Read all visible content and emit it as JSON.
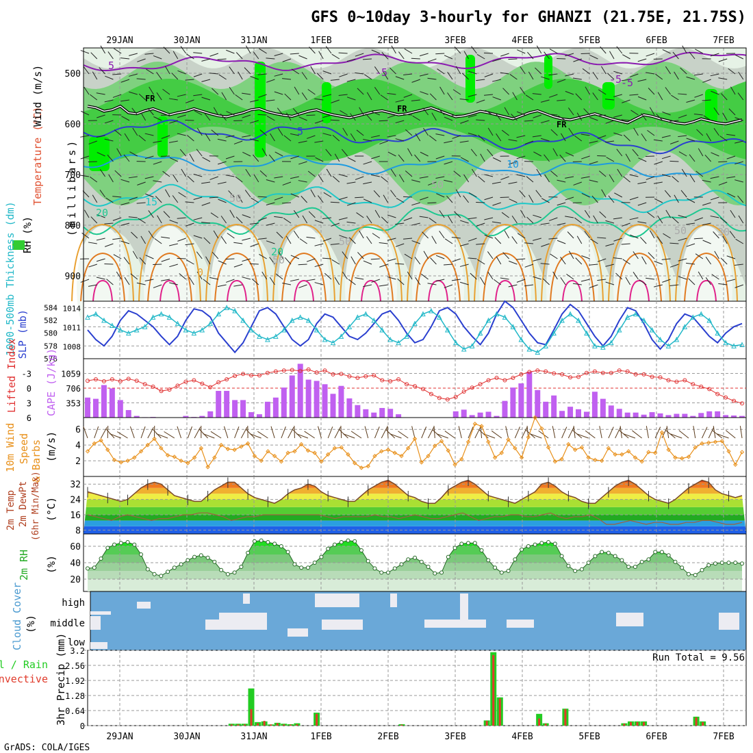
{
  "title": "GFS 0~10day 3-hourly for GHANZI (21.75E, 21.75S)",
  "footer": "GrADS: COLA/IGES",
  "dates": [
    "29JAN",
    "30JAN",
    "31JAN",
    "1FEB",
    "2FEB",
    "3FEB",
    "4FEB",
    "5FEB",
    "6FEB",
    "7FEB"
  ],
  "colors": {
    "rh_green": "#33cc33",
    "rh_bright": "#00ee00",
    "rh_grey": "#c8d2c8",
    "rh_light": "#e6f2e6",
    "slp": "#2a3fcf",
    "thickness": "#22b8c8",
    "lifted": "#e03030",
    "cape": "#c060f0",
    "wind_speed": "#e8901a",
    "barb": "#5a3a1a",
    "rh2m": "#33cc33",
    "cloud_blue": "#6aa8d8",
    "precip_total": "#22cc22",
    "precip_conv": "#e03a2a"
  },
  "chart_data": [
    {
      "type": "heatmap",
      "name": "RH / Temperature / Wind cross-section",
      "ylabel_parts": [
        "RH (%)",
        "Temperature (°C)",
        "Wind (m/s)"
      ],
      "ylabel_units": "(millibars)",
      "yticks": [
        500,
        600,
        700,
        800,
        900
      ],
      "ylim": [
        950,
        450
      ],
      "contour_labels": [
        "5",
        "-5",
        "FR",
        "FR",
        "FR",
        "-5",
        "-5",
        "5",
        "10",
        "15",
        "20",
        "20",
        "0",
        "50",
        "50",
        "50",
        "50",
        "50",
        "30"
      ],
      "freezing_level_mb": [
        565,
        568,
        575,
        572,
        565,
        578,
        580,
        574,
        570,
        576,
        582,
        578,
        575,
        570,
        575,
        580,
        584,
        586,
        582,
        578,
        572,
        570,
        576,
        580,
        583,
        585,
        580,
        575,
        572,
        578,
        582,
        585,
        588,
        584,
        580,
        576,
        574,
        578,
        582,
        580,
        576,
        572,
        568,
        574,
        580,
        586,
        584,
        580,
        575,
        578,
        582,
        586,
        590,
        584,
        578,
        574,
        580,
        586,
        590,
        592,
        588,
        584,
        580,
        585,
        590,
        594,
        598,
        590,
        582,
        585,
        590,
        594,
        598,
        600,
        596,
        590,
        594,
        598,
        600,
        596,
        592
      ]
    },
    {
      "type": "line",
      "name": "SLP & Thickness",
      "series": [
        {
          "name": "SLP (mb)",
          "axis": "right",
          "ylim": [
            1006,
            1015
          ],
          "yticks": [
            1008,
            1011,
            1014
          ],
          "values": [
            1010.5,
            1009,
            1008,
            1009.5,
            1012,
            1013.5,
            1013,
            1012,
            1011,
            1009.5,
            1008.2,
            1009.5,
            1012,
            1013.8,
            1013.5,
            1012.5,
            1010,
            1008.5,
            1007,
            1008.5,
            1011,
            1013.5,
            1014,
            1013,
            1011,
            1009,
            1008,
            1009,
            1011.5,
            1013,
            1012.5,
            1011,
            1009.5,
            1009,
            1010,
            1011.5,
            1013,
            1013.5,
            1012,
            1010,
            1008.5,
            1009,
            1011,
            1013.5,
            1014,
            1013,
            1011,
            1009.5,
            1008.2,
            1010,
            1013,
            1015,
            1014,
            1012,
            1010,
            1008.5,
            1008.2,
            1010.5,
            1013,
            1014.5,
            1013.5,
            1011.5,
            1009.5,
            1008,
            1009.5,
            1012,
            1014,
            1013.5,
            1011.5,
            1009,
            1007.5,
            1009,
            1011.5,
            1013,
            1012.5,
            1011,
            1009.5,
            1008.5,
            1010,
            1011,
            1011.5
          ]
        },
        {
          "name": "1000-500mb Thickness (dm)",
          "axis": "left",
          "ylim": [
            576,
            585
          ],
          "yticks": [
            576,
            578,
            580,
            582,
            584
          ],
          "values": [
            582.5,
            583,
            582,
            581.2,
            580.5,
            580,
            580.5,
            581,
            582.5,
            583,
            582.5,
            581.5,
            580.5,
            580,
            580.5,
            581.5,
            583,
            584,
            583.5,
            582,
            580.5,
            579.5,
            579,
            579.5,
            580.5,
            582,
            582.5,
            582,
            580.5,
            579,
            578.5,
            579.5,
            581,
            582.5,
            583,
            582,
            580.5,
            579,
            578.5,
            579.5,
            581.5,
            583,
            583.5,
            582.5,
            580.5,
            578.5,
            577.5,
            578,
            580,
            582,
            583,
            582.5,
            581,
            579,
            577.5,
            577,
            578,
            580,
            582,
            583,
            582,
            580,
            578,
            577.8,
            578.5,
            580.5,
            582.5,
            583,
            582,
            580.5,
            579,
            578,
            579,
            581,
            582.5,
            583,
            582,
            580,
            578.5,
            578,
            578.2
          ]
        }
      ]
    },
    {
      "type": "bar",
      "name": "Lifted Index & CAPE",
      "lifted_index_label": "Lifted Index",
      "cape_label": "CAPE (J/kg)",
      "lifted_index_ticks": [
        -3,
        0,
        3,
        6
      ],
      "cape_ticks": [
        353,
        706,
        1059
      ],
      "cape_ylim": [
        0,
        1412
      ],
      "lifted_index_ylim": [
        6,
        -6
      ],
      "cape": [
        480,
        450,
        780,
        700,
        420,
        180,
        40,
        10,
        15,
        5,
        0,
        0,
        40,
        15,
        40,
        150,
        640,
        640,
        420,
        420,
        130,
        80,
        380,
        480,
        720,
        1010,
        1290,
        910,
        880,
        800,
        570,
        760,
        460,
        300,
        200,
        120,
        230,
        210,
        80,
        0,
        0,
        0,
        0,
        0,
        0,
        150,
        190,
        60,
        120,
        140,
        40,
        400,
        720,
        820,
        1100,
        660,
        380,
        530,
        160,
        260,
        200,
        140,
        620,
        450,
        290,
        210,
        120,
        120,
        70,
        130,
        100,
        60,
        90,
        90,
        40,
        110,
        150,
        150,
        60,
        50,
        40
      ],
      "lifted_index": [
        -1.5,
        -1.8,
        -1.4,
        -1.8,
        -1.4,
        -1.9,
        -1.5,
        -0.8,
        -0.3,
        0.6,
        0.3,
        -0.5,
        -1.3,
        -1.6,
        -0.9,
        -0.2,
        -1.2,
        -1.8,
        -2.5,
        -2.9,
        -2.6,
        -2.6,
        -3.1,
        -3.4,
        -3.6,
        -3.7,
        -3.5,
        -3.8,
        -3.2,
        -3.6,
        -2.8,
        -2.9,
        -2.4,
        -2.1,
        -2.4,
        -2.6,
        -1.6,
        -1.4,
        -1.8,
        -0.8,
        -0.4,
        0.2,
        1.2,
        2.0,
        2.3,
        1.8,
        0.7,
        -0.1,
        -0.8,
        -1.6,
        -2.1,
        -1.6,
        -2.1,
        -2.8,
        -3.3,
        -3.6,
        -3.4,
        -3.0,
        -2.8,
        -2.2,
        -2.3,
        -3.1,
        -3.4,
        -3.1,
        -3.1,
        -3.6,
        -3.4,
        -2.8,
        -2.8,
        -2.3,
        -2.2,
        -1.6,
        -1.3,
        -1.6,
        -0.8,
        -0.3,
        0.2,
        1.2,
        1.9,
        2.6,
        3.1
      ]
    },
    {
      "type": "line",
      "name": "10m Wind Speed & Barbs",
      "ylabel": "(m/s)",
      "yticks": [
        2,
        4,
        6
      ],
      "ylim": [
        0,
        7.5
      ],
      "values": [
        3.2,
        4.2,
        4.6,
        3.4,
        2.1,
        1.8,
        2.0,
        2.4,
        3.2,
        4.0,
        4.8,
        3.6,
        2.7,
        2.5,
        2.0,
        1.7,
        2.4,
        3.6,
        1.2,
        2.4,
        4.0,
        3.5,
        3.4,
        3.8,
        4.2,
        2.6,
        2.0,
        3.2,
        2.6,
        1.9,
        3.0,
        3.2,
        4.1,
        3.3,
        3.0,
        1.9,
        2.8,
        3.6,
        3.7,
        2.8,
        1.7,
        1.1,
        1.3,
        2.6,
        3.2,
        3.4,
        3.0,
        2.6,
        3.6,
        4.8,
        1.8,
        2.6,
        3.9,
        4.5,
        3.3,
        1.5,
        2.2,
        4.4,
        6.7,
        6.4,
        4.4,
        2.4,
        3.0,
        4.7,
        3.6,
        2.4,
        5.0,
        7.5,
        6.1,
        3.7,
        1.9,
        2.2,
        4.1,
        3.4,
        3.7,
        2.4,
        2.1,
        2.0,
        3.6,
        2.8,
        2.8,
        3.2,
        2.4,
        1.9,
        3.1,
        3.0,
        5.6,
        3.4,
        2.4,
        2.3,
        2.5,
        3.7,
        4.2,
        4.3,
        4.4,
        4.5,
        3.2,
        1.5,
        3.1
      ]
    },
    {
      "type": "area",
      "name": "2m Temp & DewPt",
      "ylabel": "(°C)",
      "yticks": [
        8,
        16,
        24,
        32
      ],
      "ylim": [
        6,
        36
      ],
      "series": [
        {
          "name": "2m Temp",
          "values": [
            28,
            27,
            26,
            25,
            24,
            23,
            24,
            27,
            30,
            32,
            33,
            32,
            29,
            26,
            25,
            24,
            23,
            23,
            26,
            29,
            31,
            33,
            33,
            30,
            27,
            25,
            24,
            23,
            22,
            24,
            27,
            29,
            30,
            32,
            31,
            28,
            26,
            25,
            24,
            23,
            23,
            26,
            29,
            31,
            33,
            34,
            32,
            29,
            26,
            25,
            23,
            22,
            22,
            25,
            29,
            31,
            33,
            34,
            32,
            29,
            26,
            25,
            24,
            23,
            22,
            24,
            26,
            28,
            32,
            33,
            31,
            28,
            26,
            25,
            23,
            22,
            22,
            25,
            28,
            31,
            33,
            34,
            32,
            29,
            26,
            24,
            23,
            22,
            24,
            27,
            30,
            32,
            34,
            33,
            29,
            27,
            26,
            25,
            26
          ]
        },
        {
          "name": "2m DewPt",
          "values": [
            16,
            15,
            14,
            13,
            15,
            16,
            15,
            14,
            13,
            14,
            14,
            15,
            16,
            16,
            17,
            17,
            16,
            15,
            13,
            14,
            15,
            15,
            16,
            16,
            16,
            16,
            16,
            16,
            16,
            16,
            15,
            14,
            15,
            15,
            15,
            15,
            16,
            15,
            15,
            14,
            15,
            16,
            15,
            14,
            14,
            15,
            16,
            17,
            15,
            13,
            14,
            15,
            15,
            16,
            16,
            15,
            15,
            16,
            17,
            15,
            14,
            15,
            15,
            16,
            14,
            11,
            11,
            12,
            13,
            12,
            11,
            12,
            12,
            11,
            11,
            12,
            12,
            13,
            13,
            12,
            11,
            11,
            12
          ]
        }
      ]
    },
    {
      "type": "area",
      "name": "2m RH",
      "ylabel": "(%)",
      "yticks": [
        20,
        40,
        60
      ],
      "ylim": [
        5,
        75
      ],
      "values": [
        33,
        34,
        45,
        58,
        62,
        64,
        65,
        62,
        50,
        32,
        26,
        24,
        29,
        34,
        38,
        43,
        47,
        49,
        46,
        41,
        31,
        26,
        28,
        35,
        52,
        66,
        67,
        65,
        63,
        60,
        53,
        38,
        34,
        34,
        40,
        47,
        57,
        62,
        65,
        67,
        66,
        55,
        42,
        33,
        28,
        28,
        33,
        38,
        44,
        46,
        41,
        35,
        27,
        28,
        47,
        58,
        63,
        64,
        64,
        55,
        43,
        34,
        28,
        30,
        44,
        56,
        60,
        62,
        64,
        65,
        63,
        48,
        36,
        30,
        32,
        40,
        48,
        53,
        52,
        48,
        43,
        35,
        35,
        41,
        44,
        53,
        53,
        49,
        41,
        34,
        26,
        25,
        31,
        37,
        39,
        40,
        40,
        40,
        39
      ]
    },
    {
      "type": "heatmap",
      "name": "Cloud Cover",
      "ylabel": "Cloud Cover",
      "ylabel_units": "(%)",
      "levels": [
        "high",
        "middle",
        "low"
      ]
    },
    {
      "type": "bar",
      "name": "3hr Precip",
      "ylabel": "3hr Precip (mm)",
      "legend": [
        "Total / Rain",
        "Convective"
      ],
      "yticks": [
        0,
        0.64,
        1.28,
        1.92,
        2.56,
        3.2
      ],
      "ylim": [
        0,
        3.2
      ],
      "run_total_label": "Run Total = 9.56",
      "total": [
        0,
        0,
        0,
        0,
        0,
        0,
        0,
        0,
        0,
        0,
        0,
        0,
        0,
        0,
        0,
        0,
        0,
        0,
        0,
        0,
        0,
        0,
        0.08,
        0.08,
        0.08,
        1.58,
        0.15,
        0.18,
        0.05,
        0.12,
        0.08,
        0.06,
        0.1,
        0,
        0,
        0.55,
        0,
        0,
        0,
        0,
        0,
        0,
        0,
        0,
        0,
        0,
        0,
        0,
        0.06,
        0,
        0,
        0,
        0,
        0,
        0,
        0,
        0,
        0,
        0,
        0,
        0,
        0.22,
        3.12,
        1.2,
        0,
        0,
        0,
        0,
        0,
        0.5,
        0.1,
        0,
        0,
        0.72,
        0,
        0,
        0,
        0,
        0,
        0,
        0,
        0,
        0.1,
        0.18,
        0.18,
        0.18,
        0,
        0,
        0,
        0,
        0,
        0,
        0,
        0.38,
        0.18,
        0,
        0,
        0,
        0,
        0,
        0
      ],
      "convective": [
        0,
        0,
        0,
        0,
        0,
        0,
        0,
        0,
        0,
        0,
        0,
        0,
        0,
        0,
        0,
        0,
        0,
        0,
        0,
        0,
        0,
        0,
        0.05,
        0.05,
        0.05,
        0.7,
        0.1,
        0.2,
        0.05,
        0.1,
        0.05,
        0.04,
        0.06,
        0,
        0,
        0.5,
        0,
        0,
        0,
        0,
        0,
        0,
        0,
        0,
        0,
        0,
        0,
        0,
        0.04,
        0,
        0,
        0,
        0,
        0,
        0,
        0,
        0,
        0,
        0,
        0,
        0,
        0.2,
        3.0,
        1.15,
        0,
        0,
        0,
        0,
        0,
        0.3,
        0.08,
        0,
        0,
        0.7,
        0,
        0,
        0,
        0,
        0,
        0,
        0,
        0,
        0.08,
        0.15,
        0.15,
        0.15,
        0,
        0,
        0,
        0,
        0,
        0,
        0,
        0.35,
        0.15,
        0,
        0,
        0,
        0,
        0,
        0
      ]
    }
  ]
}
